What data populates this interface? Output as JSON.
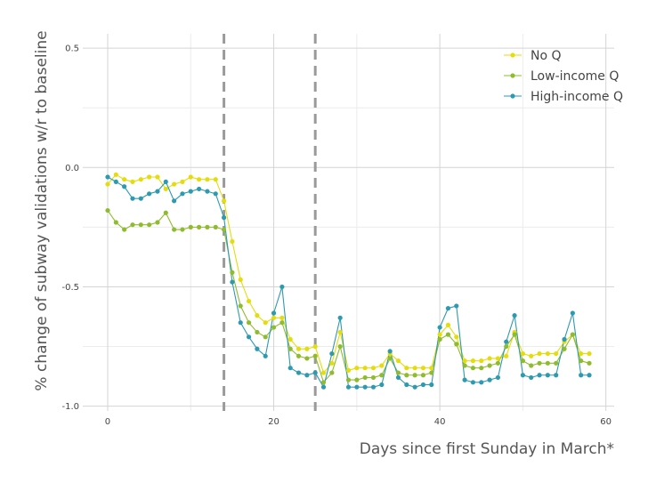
{
  "chart_data": {
    "type": "line",
    "title": "",
    "xlabel": "Days since first Sunday in March*",
    "ylabel": "% change of subway validations w/r to baseline",
    "xlim": [
      -3,
      61
    ],
    "ylim": [
      -1.02,
      0.56
    ],
    "x_ticks": [
      0,
      20,
      40,
      60
    ],
    "y_ticks": [
      -1.0,
      -0.5,
      0.0,
      0.5
    ],
    "x_tick_labels": [
      "0",
      "20",
      "40",
      "60"
    ],
    "y_tick_labels": [
      "-1.0",
      "-0.5",
      "0.0",
      "0.5"
    ],
    "grid": true,
    "legend_position": "top-right",
    "vlines": [
      14,
      25
    ],
    "x": [
      0,
      1,
      2,
      3,
      4,
      5,
      6,
      7,
      8,
      9,
      10,
      11,
      12,
      13,
      14,
      15,
      16,
      17,
      18,
      19,
      20,
      21,
      22,
      23,
      24,
      25,
      26,
      27,
      28,
      29,
      30,
      31,
      32,
      33,
      34,
      35,
      36,
      37,
      38,
      39,
      40,
      41,
      42,
      43,
      44,
      45,
      46,
      47,
      48,
      49,
      50,
      51,
      52,
      53,
      54,
      55,
      56,
      57,
      58
    ],
    "series": [
      {
        "name": "No Q",
        "color": "#e5dc0c",
        "values": [
          -0.07,
          -0.03,
          -0.05,
          -0.06,
          -0.05,
          -0.04,
          -0.04,
          -0.09,
          -0.07,
          -0.06,
          -0.04,
          -0.05,
          -0.05,
          -0.05,
          -0.14,
          -0.31,
          -0.47,
          -0.56,
          -0.62,
          -0.65,
          -0.63,
          -0.63,
          -0.72,
          -0.76,
          -0.76,
          -0.75,
          -0.86,
          -0.82,
          -0.69,
          -0.85,
          -0.84,
          -0.84,
          -0.84,
          -0.83,
          -0.78,
          -0.81,
          -0.84,
          -0.84,
          -0.84,
          -0.84,
          -0.7,
          -0.66,
          -0.71,
          -0.81,
          -0.81,
          -0.81,
          -0.8,
          -0.8,
          -0.79,
          -0.69,
          -0.78,
          -0.79,
          -0.78,
          -0.78,
          -0.78,
          -0.73,
          -0.7,
          -0.78,
          -0.78
        ]
      },
      {
        "name": "Low-income Q",
        "color": "#8fbc2e",
        "values": [
          -0.18,
          -0.23,
          -0.26,
          -0.24,
          -0.24,
          -0.24,
          -0.23,
          -0.19,
          -0.26,
          -0.26,
          -0.25,
          -0.25,
          -0.25,
          -0.25,
          -0.26,
          -0.44,
          -0.58,
          -0.65,
          -0.69,
          -0.71,
          -0.67,
          -0.65,
          -0.76,
          -0.79,
          -0.8,
          -0.79,
          -0.9,
          -0.86,
          -0.75,
          -0.89,
          -0.89,
          -0.88,
          -0.88,
          -0.87,
          -0.8,
          -0.86,
          -0.87,
          -0.87,
          -0.87,
          -0.86,
          -0.72,
          -0.7,
          -0.74,
          -0.83,
          -0.84,
          -0.84,
          -0.83,
          -0.82,
          -0.75,
          -0.7,
          -0.81,
          -0.83,
          -0.82,
          -0.82,
          -0.82,
          -0.76,
          -0.7,
          -0.81,
          -0.82
        ]
      },
      {
        "name": "High-income Q",
        "color": "#2e9ab0",
        "values": [
          -0.04,
          -0.06,
          -0.08,
          -0.13,
          -0.13,
          -0.11,
          -0.1,
          -0.06,
          -0.14,
          -0.11,
          -0.1,
          -0.09,
          -0.1,
          -0.11,
          -0.21,
          -0.48,
          -0.65,
          -0.71,
          -0.76,
          -0.79,
          -0.61,
          -0.5,
          -0.84,
          -0.86,
          -0.87,
          -0.86,
          -0.92,
          -0.78,
          -0.63,
          -0.92,
          -0.92,
          -0.92,
          -0.92,
          -0.91,
          -0.77,
          -0.88,
          -0.91,
          -0.92,
          -0.91,
          -0.91,
          -0.67,
          -0.59,
          -0.58,
          -0.89,
          -0.9,
          -0.9,
          -0.89,
          -0.88,
          -0.73,
          -0.62,
          -0.87,
          -0.88,
          -0.87,
          -0.87,
          -0.87,
          -0.72,
          -0.61,
          -0.87,
          -0.87
        ]
      }
    ]
  }
}
